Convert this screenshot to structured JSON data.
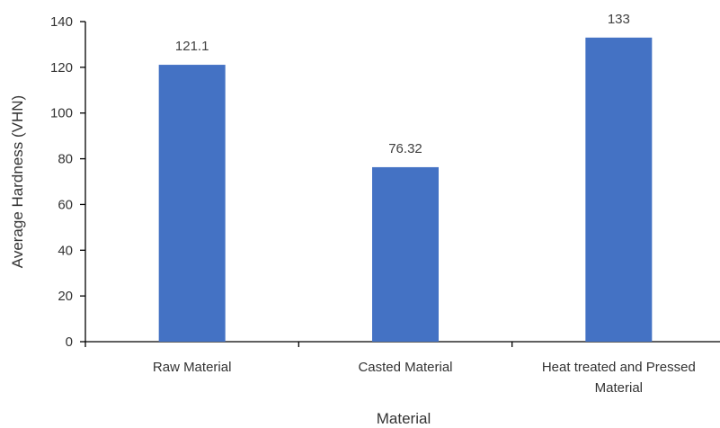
{
  "chart_data": {
    "type": "bar",
    "categories": [
      [
        "Raw Material"
      ],
      [
        "Casted Material"
      ],
      [
        "Heat treated and Pressed",
        "Material"
      ]
    ],
    "values": [
      121.1,
      76.32,
      133
    ],
    "data_labels": [
      "121.1",
      "76.32",
      "133"
    ],
    "title": "",
    "xlabel": "Material",
    "ylabel": "Average Hardness (VHN)",
    "ylim": [
      0,
      140
    ],
    "yticks": [
      0,
      20,
      40,
      60,
      80,
      100,
      120,
      140
    ],
    "grid": false,
    "legend": "none",
    "bar_color": "#4472C4"
  }
}
